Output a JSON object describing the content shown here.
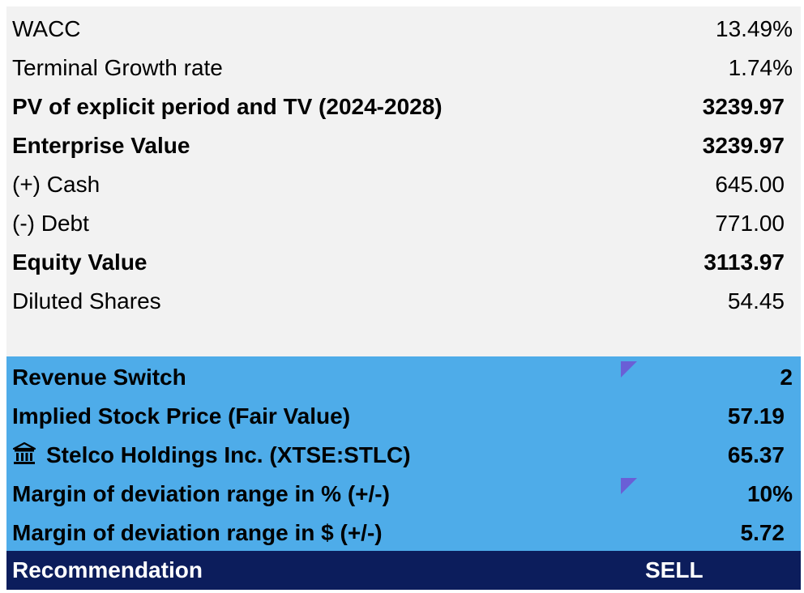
{
  "valuation": {
    "rows": [
      {
        "label": "WACC",
        "value": "13.49%"
      },
      {
        "label": "Terminal Growth rate",
        "value": "1.74%"
      },
      {
        "label": "PV of explicit period and TV (2024-2028)",
        "value": "3239.97"
      },
      {
        "label": "Enterprise Value",
        "value": "3239.97"
      },
      {
        "label": "(+) Cash",
        "value": "645.00"
      },
      {
        "label": "(-) Debt",
        "value": "771.00"
      },
      {
        "label": "Equity Value",
        "value": "3113.97"
      },
      {
        "label": "Diluted Shares",
        "value": "54.45"
      }
    ]
  },
  "summary": {
    "rows": [
      {
        "label": "Revenue Switch",
        "value": "2"
      },
      {
        "label": "Implied Stock Price (Fair Value)",
        "value": "57.19"
      },
      {
        "label": "Stelco Holdings Inc. (XTSE:STLC)",
        "value": "65.37",
        "icon": "bank-icon"
      },
      {
        "label": "Margin of deviation range in % (+/-)",
        "value": "10%"
      },
      {
        "label": "Margin of deviation range in $ (+/-)",
        "value": "5.72"
      }
    ]
  },
  "recommendation": {
    "label": "Recommendation",
    "value": "SELL"
  },
  "colors": {
    "gray_fill": "#f2f2f2",
    "blue_fill": "#4eace9",
    "navy_fill": "#0c1d5c",
    "comment_marker": "#6a5fd6"
  }
}
